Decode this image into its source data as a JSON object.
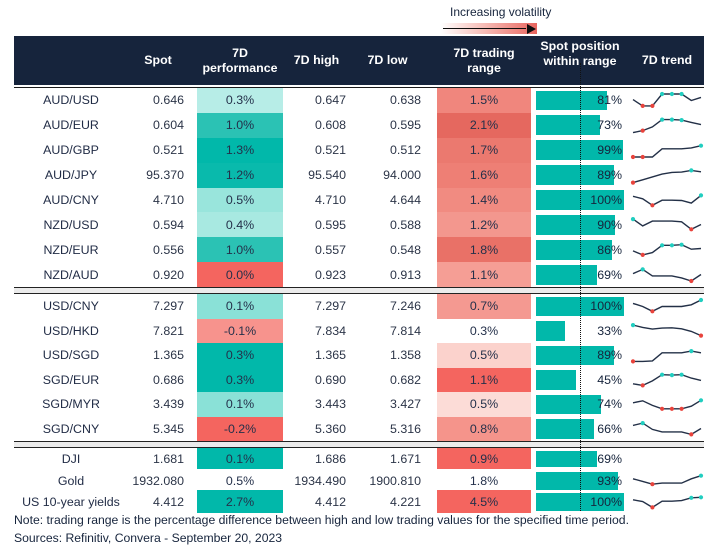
{
  "legend": {
    "label": "Increasing volatility"
  },
  "footer": {
    "note": "Note: trading range is the percentage difference between high and low trading values for the specified time period.",
    "sources": "Sources: Refinitiv, Convera - September 20, 2023"
  },
  "colors": {
    "navy": "#16243C",
    "teal": "#01B8AA",
    "red": "#F4655F",
    "volatility_gradient_end": "#E8655E",
    "spark_line": "#233047",
    "spark_high": "#21CEC0",
    "spark_low": "#E8433C"
  },
  "chart_data": {
    "type": "table",
    "columns": [
      "",
      "Spot",
      "7D performance",
      "7D high",
      "7D low",
      "7D trading range",
      "Spot position within range",
      "7D trend"
    ],
    "sections": [
      {
        "rows": [
          {
            "pair": "AUD/USD",
            "spot": "0.646",
            "performance": "0.3%",
            "perf_bg": "#B7EDE7",
            "high": "0.647",
            "low": "0.638",
            "range": "1.5%",
            "range_bg": "#F0867D",
            "position_pct": 81,
            "position_label": "81%",
            "trend": {
              "points": [
                0.55,
                0.18,
                0.18,
                0.88,
                0.88,
                0.88,
                0.5,
                0.68
              ],
              "low": [
                1,
                2
              ],
              "high": [
                3,
                4,
                5
              ]
            }
          },
          {
            "pair": "AUD/EUR",
            "spot": "0.604",
            "performance": "1.0%",
            "perf_bg": "#2BC2B4",
            "high": "0.608",
            "low": "0.595",
            "range": "2.1%",
            "range_bg": "#E5685F",
            "position_pct": 73,
            "position_label": "73%",
            "trend": {
              "points": [
                0.08,
                0.2,
                0.42,
                0.85,
                0.85,
                0.82,
                0.68,
                0.55
              ],
              "low": [
                1
              ],
              "high": [
                3,
                4,
                5
              ]
            }
          },
          {
            "pair": "AUD/GBP",
            "spot": "0.521",
            "performance": "1.3%",
            "perf_bg": "#01B8AA",
            "high": "0.521",
            "low": "0.512",
            "range": "1.7%",
            "range_bg": "#EB796F",
            "position_pct": 99,
            "position_label": "99%",
            "trend": {
              "points": [
                0.12,
                0.12,
                0.12,
                0.6,
                0.6,
                0.6,
                0.65,
                0.78
              ],
              "low": [
                0,
                1
              ],
              "high": [
                7
              ]
            }
          },
          {
            "pair": "AUD/JPY",
            "spot": "95.370",
            "performance": "1.2%",
            "perf_bg": "#09BAAC",
            "high": "95.540",
            "low": "94.000",
            "range": "1.6%",
            "range_bg": "#EE7F75",
            "position_pct": 89,
            "position_label": "89%",
            "trend": {
              "points": [
                0.08,
                0.25,
                0.42,
                0.58,
                0.68,
                0.7,
                0.8,
                0.72
              ],
              "low": [
                0
              ],
              "high": [
                6
              ]
            }
          },
          {
            "pair": "AUD/CNY",
            "spot": "4.710",
            "performance": "0.5%",
            "perf_bg": "#99E5DC",
            "high": "4.710",
            "low": "4.644",
            "range": "1.4%",
            "range_bg": "#F18B81",
            "position_pct": 100,
            "position_label": "100%",
            "trend": {
              "points": [
                0.75,
                0.6,
                0.22,
                0.52,
                0.52,
                0.5,
                0.35,
                0.8
              ],
              "low": [
                2
              ],
              "high": [
                7
              ]
            }
          },
          {
            "pair": "NZD/USD",
            "spot": "0.594",
            "performance": "0.4%",
            "perf_bg": "#A8E9E1",
            "high": "0.595",
            "low": "0.588",
            "range": "1.2%",
            "range_bg": "#F3978E",
            "position_pct": 90,
            "position_label": "90%",
            "trend": {
              "points": [
                0.82,
                0.42,
                0.7,
                0.7,
                0.7,
                0.66,
                0.22,
                0.5
              ],
              "low": [
                6
              ],
              "high": [
                0
              ]
            }
          },
          {
            "pair": "NZD/EUR",
            "spot": "0.556",
            "performance": "1.0%",
            "perf_bg": "#2BC2B4",
            "high": "0.557",
            "low": "0.548",
            "range": "1.8%",
            "range_bg": "#E97167",
            "position_pct": 86,
            "position_label": "86%",
            "trend": {
              "points": [
                0.42,
                0.18,
                0.32,
                0.75,
                0.75,
                0.78,
                0.52,
                0.56
              ],
              "low": [
                1
              ],
              "high": [
                3,
                4,
                5
              ]
            }
          },
          {
            "pair": "NZD/AUD",
            "spot": "0.920",
            "performance": "0.0%",
            "perf_bg": "#F4655F",
            "high": "0.923",
            "low": "0.913",
            "range": "1.1%",
            "range_bg": "#F59E95",
            "position_pct": 69,
            "position_label": "69%",
            "trend": {
              "points": [
                0.55,
                0.8,
                0.42,
                0.42,
                0.42,
                0.3,
                0.12,
                0.5
              ],
              "low": [
                6
              ],
              "high": [
                1
              ]
            }
          }
        ]
      },
      {
        "rows": [
          {
            "pair": "USD/CNY",
            "spot": "7.297",
            "performance": "0.1%",
            "perf_bg": "#8AE1D7",
            "high": "7.297",
            "low": "7.246",
            "range": "0.7%",
            "range_bg": "#F49991",
            "position_pct": 100,
            "position_label": "100%",
            "trend": {
              "points": [
                0.68,
                0.5,
                0.22,
                0.5,
                0.5,
                0.5,
                0.6,
                0.88
              ],
              "low": [
                2
              ],
              "high": [
                7
              ]
            }
          },
          {
            "pair": "USD/HKD",
            "spot": "7.821",
            "performance": "-0.1%",
            "perf_bg": "#F7938D",
            "high": "7.834",
            "low": "7.814",
            "range": "0.3%",
            "range_bg": null,
            "position_pct": 33,
            "position_label": "33%",
            "trend": {
              "points": [
                0.82,
                0.68,
                0.58,
                0.64,
                0.66,
                0.6,
                0.45,
                0.2
              ],
              "low": [
                7
              ],
              "high": [
                0
              ]
            }
          },
          {
            "pair": "USD/SGD",
            "spot": "1.365",
            "performance": "0.3%",
            "perf_bg": "#01B8AA",
            "high": "1.365",
            "low": "1.358",
            "range": "0.5%",
            "range_bg": "#FBD2CC",
            "position_pct": 89,
            "position_label": "89%",
            "trend": {
              "points": [
                0.15,
                0.15,
                0.18,
                0.66,
                0.66,
                0.66,
                0.76,
                0.66
              ],
              "low": [
                0
              ],
              "high": [
                6
              ]
            }
          },
          {
            "pair": "SGD/EUR",
            "spot": "0.686",
            "performance": "0.3%",
            "perf_bg": "#01B8AA",
            "high": "0.690",
            "low": "0.682",
            "range": "1.1%",
            "range_bg": "#F4655F",
            "position_pct": 45,
            "position_label": "45%",
            "trend": {
              "points": [
                0.25,
                0.15,
                0.42,
                0.78,
                0.76,
                0.78,
                0.58,
                0.45
              ],
              "low": [
                1
              ],
              "high": [
                3,
                4,
                5
              ]
            }
          },
          {
            "pair": "SGD/MYR",
            "spot": "3.439",
            "performance": "0.1%",
            "perf_bg": "#8AE1D7",
            "high": "3.443",
            "low": "3.427",
            "range": "0.5%",
            "range_bg": "#FCDCD7",
            "position_pct": 74,
            "position_label": "74%",
            "trend": {
              "points": [
                0.6,
                0.72,
                0.45,
                0.25,
                0.25,
                0.25,
                0.4,
                0.75
              ],
              "low": [
                3,
                4,
                5
              ],
              "high": [
                7
              ]
            }
          },
          {
            "pair": "SGD/CNY",
            "spot": "5.345",
            "performance": "-0.2%",
            "perf_bg": "#F4655F",
            "high": "5.360",
            "low": "5.316",
            "range": "0.8%",
            "range_bg": "#F5948B",
            "position_pct": 66,
            "position_label": "66%",
            "trend": {
              "points": [
                0.68,
                0.82,
                0.45,
                0.3,
                0.3,
                0.3,
                0.15,
                0.5
              ],
              "low": [
                6
              ],
              "high": [
                1
              ]
            }
          }
        ]
      },
      {
        "rows": [
          {
            "pair": "DJI",
            "spot": "1.681",
            "performance": "0.1%",
            "perf_bg": "#01B8AA",
            "high": "1.686",
            "low": "1.671",
            "range": "0.9%",
            "range_bg": "#F4655F",
            "position_pct": 69,
            "position_label": "69%",
            "trend": null
          },
          {
            "pair": "Gold",
            "spot": "1932.080",
            "performance": "0.5%",
            "perf_bg": null,
            "high": "1934.490",
            "low": "1900.810",
            "range": "1.8%",
            "range_bg": null,
            "position_pct": 93,
            "position_label": "93%",
            "trend": {
              "points": [
                0.6,
                0.45,
                0.28,
                0.35,
                0.35,
                0.35,
                0.6,
                0.78
              ],
              "low": [
                2
              ],
              "high": [
                7
              ]
            }
          },
          {
            "pair": "US 10-year yields",
            "spot": "4.412",
            "performance": "2.7%",
            "perf_bg": "#01B8AA",
            "high": "4.412",
            "low": "4.221",
            "range": "4.5%",
            "range_bg": "#F4655F",
            "position_pct": 100,
            "position_label": "100%",
            "trend": {
              "points": [
                0.6,
                0.5,
                0.15,
                0.52,
                0.52,
                0.55,
                0.72,
                0.75
              ],
              "low": [
                2
              ],
              "high": [
                6,
                7
              ]
            }
          }
        ]
      }
    ]
  }
}
